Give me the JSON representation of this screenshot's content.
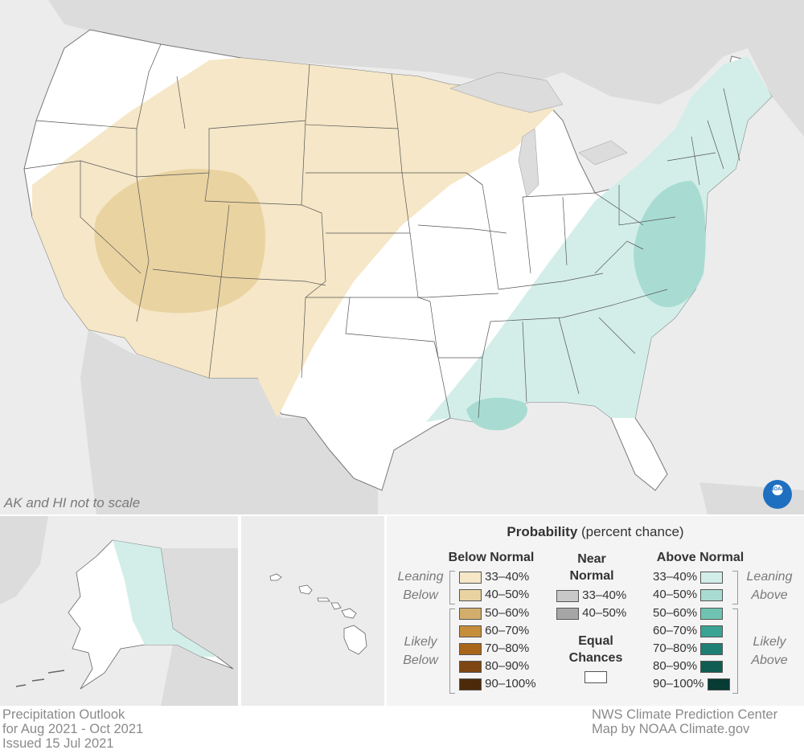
{
  "map": {
    "note": "AK and HI not to scale",
    "colors": {
      "land_other": "#dcdcdc",
      "water": "#ececec",
      "equal_chances": "#ffffff",
      "below_33_40": "#f5e7c7",
      "below_40_50": "#e9d3a1",
      "near_33_40": "#c8c8c8",
      "near_40_50": "#a6a6a6",
      "above_33_40": "#d3eee8",
      "above_40_50": "#a8dcd2",
      "below_50_60": "#d2ad6c",
      "below_60_70": "#c68d3b",
      "below_70_80": "#a9661b",
      "below_80_90": "#7d4612",
      "below_90_100": "#4d2a0a",
      "above_50_60": "#6fc3b2",
      "above_60_70": "#3aa394",
      "above_70_80": "#1e8074",
      "above_80_90": "#0f5e54",
      "above_90_100": "#073b33"
    }
  },
  "legend": {
    "title_bold": "Probability",
    "title_rest": " (percent chance)",
    "below": {
      "heading": "Below Normal",
      "leaning_label": [
        "Leaning",
        "Below"
      ],
      "likely_label": [
        "Likely",
        "Below"
      ],
      "rows": [
        "33–40%",
        "40–50%",
        "50–60%",
        "60–70%",
        "70–80%",
        "80–90%",
        "90–100%"
      ]
    },
    "near": {
      "heading": [
        "Near",
        "Normal"
      ],
      "rows": [
        "33–40%",
        "40–50%"
      ]
    },
    "equal": {
      "heading": [
        "Equal",
        "Chances"
      ]
    },
    "above": {
      "heading": "Above Normal",
      "leaning_label": [
        "Leaning",
        "Above"
      ],
      "likely_label": [
        "Likely",
        "Above"
      ],
      "rows": [
        "33–40%",
        "40–50%",
        "50–60%",
        "60–70%",
        "70–80%",
        "80–90%",
        "90–100%"
      ]
    }
  },
  "footer": {
    "left": [
      "Precipitation Outlook",
      "for Aug 2021 - Oct 2021",
      "Issued 15 Jul 2021"
    ],
    "right": [
      "NWS Climate Prediction Center",
      "Map by NOAA Climate.gov"
    ]
  },
  "logo_text": "NOAA"
}
